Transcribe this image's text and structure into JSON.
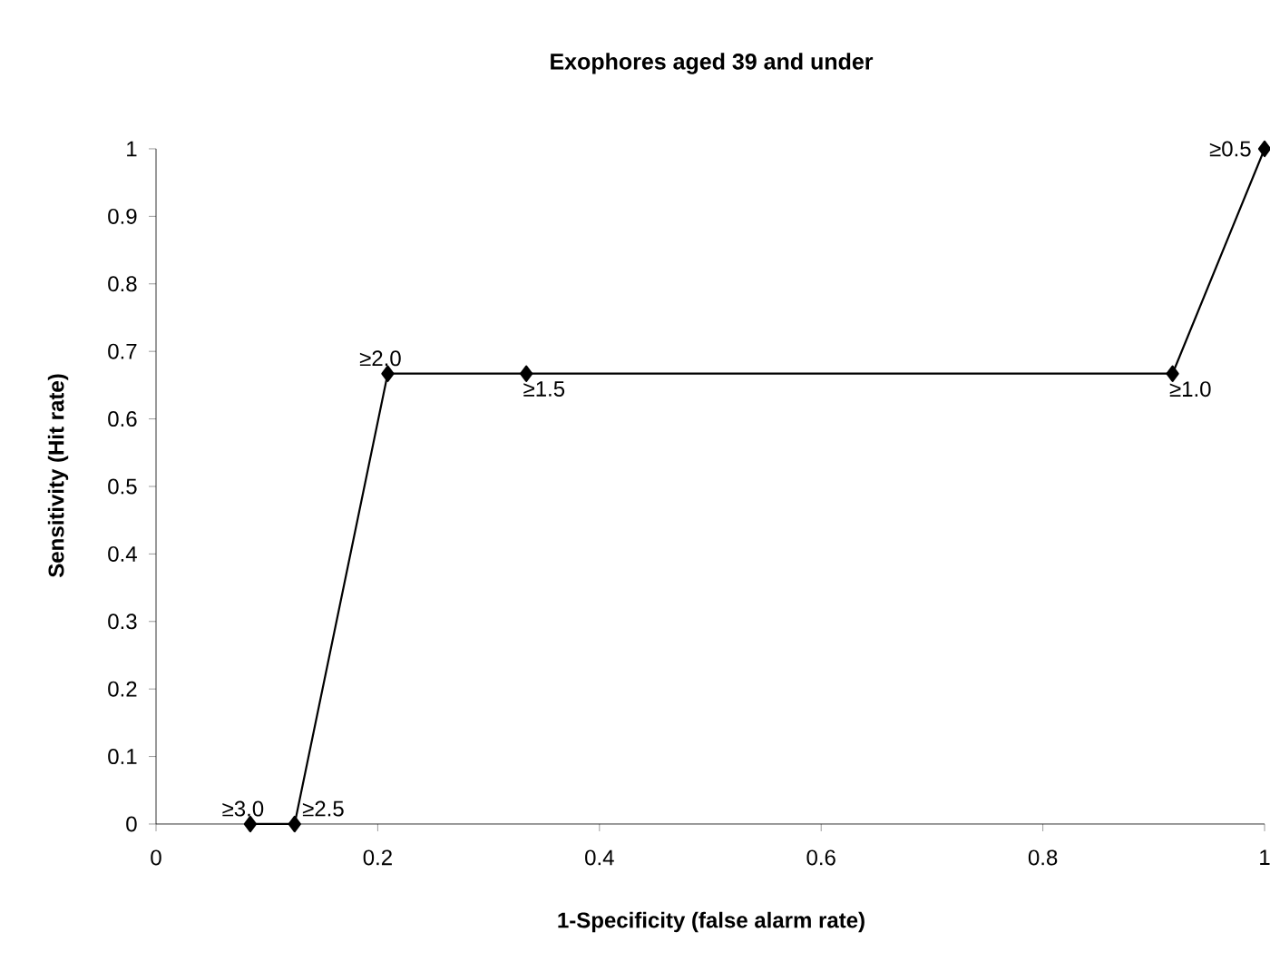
{
  "chart_data": {
    "type": "line",
    "title": "Exophores aged 39 and under",
    "xlabel": "1-Specificity (false alarm rate)",
    "ylabel": "Sensitivity (Hit rate)",
    "series": [
      {
        "color": "#000000",
        "x": [
          0.085,
          0.125,
          0.209,
          0.334,
          0.917,
          1
        ],
        "values": [
          0,
          0,
          0.667,
          0.667,
          0.667,
          1
        ]
      }
    ],
    "xlim": [
      0,
      1
    ],
    "ylim": [
      0,
      1
    ],
    "xticks": [
      0,
      0.2,
      0.4,
      0.6,
      0.8,
      1
    ],
    "yticks": [
      0,
      0.1,
      0.2,
      0.3,
      0.4,
      0.5,
      0.6,
      0.7,
      0.8,
      0.9,
      1
    ],
    "marker": "diamond",
    "line_style": "solid",
    "annotations": [
      {
        "text": "≥3.0",
        "x": 0.085,
        "y": 0
      },
      {
        "text": "≥2.5",
        "x": 0.125,
        "y": 0
      },
      {
        "text": "≥2.0",
        "x": 0.209,
        "y": 0.667
      },
      {
        "text": "≥1.5",
        "x": 0.334,
        "y": 0.667
      },
      {
        "text": "≥1.0",
        "x": 0.917,
        "y": 0.667
      },
      {
        "text": "≥0.5",
        "x": 1,
        "y": 1
      }
    ]
  }
}
